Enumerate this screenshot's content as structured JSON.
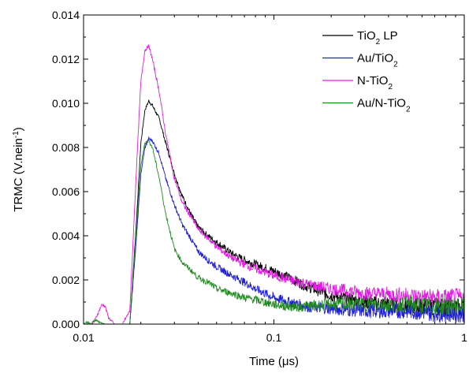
{
  "chart_data": {
    "type": "line",
    "xlabel": "Time (μs)",
    "ylabel": "TRMC (V.nein",
    "ylabel_sup": "-1",
    "ylabel_close": ")",
    "x_scale": "log",
    "xlim": [
      0.01,
      1
    ],
    "ylim": [
      0,
      0.014
    ],
    "x_ticks": [
      0.01,
      0.1,
      1
    ],
    "x_tick_labels": [
      "0.01",
      "0.1",
      "1"
    ],
    "y_ticks": [
      0,
      0.002,
      0.004,
      0.006,
      0.008,
      0.01,
      0.012,
      0.014
    ],
    "y_tick_labels": [
      "0.000",
      "0.002",
      "0.004",
      "0.006",
      "0.008",
      "0.010",
      "0.012",
      "0.014"
    ],
    "grid": false,
    "legend_position": "top-right",
    "series": [
      {
        "name": "TiO₂ LP",
        "legend_main": "TiO",
        "legend_sub": "2",
        "legend_tail": " LP",
        "color": "#000000",
        "x": [
          0.0175,
          0.019,
          0.02,
          0.021,
          0.022,
          0.023,
          0.025,
          0.027,
          0.03,
          0.033,
          0.037,
          0.04,
          0.045,
          0.05,
          0.06,
          0.07,
          0.08,
          0.1,
          0.12,
          0.15,
          0.2,
          0.3,
          0.5,
          0.7,
          1.0
        ],
        "y": [
          0.0,
          0.0048,
          0.0082,
          0.0097,
          0.0101,
          0.0099,
          0.0093,
          0.0082,
          0.0068,
          0.0058,
          0.0049,
          0.0044,
          0.004,
          0.0037,
          0.0032,
          0.0029,
          0.0027,
          0.0024,
          0.0021,
          0.0017,
          0.0013,
          0.001,
          0.0008,
          0.0008,
          0.0007
        ]
      },
      {
        "name": "Au/TiO₂",
        "legend_main": "Au/TiO",
        "legend_sub": "2",
        "legend_tail": "",
        "color": "#1f1fdc",
        "x": [
          0.0175,
          0.019,
          0.02,
          0.021,
          0.022,
          0.023,
          0.025,
          0.027,
          0.03,
          0.033,
          0.037,
          0.04,
          0.045,
          0.05,
          0.06,
          0.07,
          0.08,
          0.1,
          0.12,
          0.15,
          0.2,
          0.3,
          0.5,
          0.7,
          1.0
        ],
        "y": [
          0.0,
          0.004,
          0.0068,
          0.008,
          0.0084,
          0.0083,
          0.0077,
          0.0066,
          0.0054,
          0.0045,
          0.0038,
          0.0033,
          0.0029,
          0.0026,
          0.0022,
          0.0019,
          0.0016,
          0.0012,
          0.001,
          0.0008,
          0.0007,
          0.0006,
          0.0006,
          0.0005,
          0.0005
        ]
      },
      {
        "name": "N-TiO₂",
        "legend_main": "N-TiO",
        "legend_sub": "2",
        "legend_tail": "",
        "color": "#e619e6",
        "x": [
          0.01,
          0.011,
          0.0115,
          0.0125,
          0.013,
          0.0135,
          0.0145,
          0.016,
          0.0175,
          0.019,
          0.02,
          0.021,
          0.022,
          0.023,
          0.025,
          0.027,
          0.03,
          0.033,
          0.037,
          0.04,
          0.045,
          0.05,
          0.06,
          0.07,
          0.08,
          0.1,
          0.12,
          0.15,
          0.2,
          0.3,
          0.5,
          0.7,
          1.0
        ],
        "y": [
          0.0,
          0.0,
          0.0002,
          0.0009,
          0.0008,
          0.0003,
          0.0,
          0.0,
          0.0006,
          0.0072,
          0.011,
          0.0124,
          0.0126,
          0.012,
          0.0105,
          0.0086,
          0.0066,
          0.0055,
          0.0048,
          0.0043,
          0.0039,
          0.0035,
          0.003,
          0.0027,
          0.0025,
          0.0022,
          0.002,
          0.0018,
          0.0016,
          0.0014,
          0.0013,
          0.0012,
          0.0012
        ]
      },
      {
        "name": "Au/N-TiO₂",
        "legend_main": "Au/N-TiO",
        "legend_sub": "2",
        "legend_tail": "",
        "color": "#1e8a1e",
        "x": [
          0.01,
          0.0105,
          0.011,
          0.0115,
          0.012,
          0.013,
          0.0175,
          0.019,
          0.02,
          0.021,
          0.022,
          0.023,
          0.025,
          0.027,
          0.03,
          0.033,
          0.037,
          0.04,
          0.045,
          0.05,
          0.06,
          0.07,
          0.08,
          0.1,
          0.12,
          0.15,
          0.2,
          0.3,
          0.5,
          0.7,
          1.0
        ],
        "y": [
          0.0,
          0.0001,
          0.0,
          0.0002,
          0.0001,
          0.0,
          0.0,
          0.0045,
          0.0072,
          0.0082,
          0.0083,
          0.008,
          0.0066,
          0.005,
          0.0034,
          0.0028,
          0.0024,
          0.0021,
          0.0019,
          0.0016,
          0.0014,
          0.0012,
          0.0011,
          0.0009,
          0.0008,
          0.0008,
          0.0009,
          0.0009,
          0.0009,
          0.0008,
          0.0008
        ]
      }
    ]
  }
}
